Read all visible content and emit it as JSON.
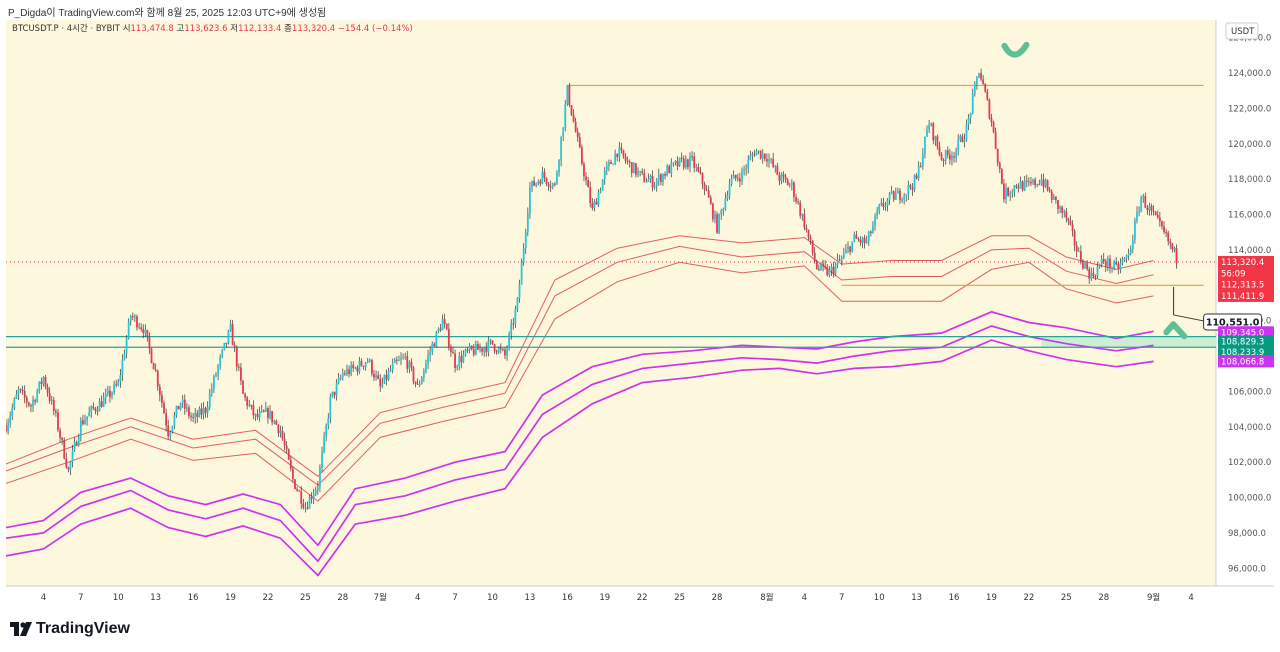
{
  "header": {
    "published": "P_Digda이 TradingView.com와 함께 8월 25, 2025 12:03 UTC+9에 생성됨",
    "symbol": "BTCUSDT.P · 4시간 · BYBIT",
    "open_label": "시",
    "open": "113,474.8",
    "high_label": "고",
    "high": "113,623.6",
    "low_label": "저",
    "low": "112,133.4",
    "close_label": "종",
    "close": "113,320.4",
    "change": "−154.4 (−0.14%)"
  },
  "brand": {
    "name": "TradingView"
  },
  "chart_data": {
    "type": "candlestick",
    "currency": "USDT",
    "y_range": [
      95000,
      127000
    ],
    "y_ticks": [
      96000,
      98000,
      100000,
      102000,
      104000,
      106000,
      108000,
      110000,
      112000,
      114000,
      116000,
      118000,
      120000,
      122000,
      124000,
      126000
    ],
    "y_tick_labels": [
      "96,000.0",
      "98,000.0",
      "100,000.0",
      "102,000.0",
      "104,000.0",
      "106,000.0",
      "108,000.0",
      "110,000.0",
      "112,000.0",
      "114,000.0",
      "116,000.0",
      "118,000.0",
      "120,000.0",
      "122,000.0",
      "124,000.0",
      "126,000.0"
    ],
    "x_labels": [
      "4",
      "7",
      "10",
      "13",
      "16",
      "19",
      "22",
      "25",
      "28",
      "7월",
      "4",
      "7",
      "10",
      "13",
      "16",
      "19",
      "22",
      "25",
      "28",
      "8월",
      "4",
      "7",
      "10",
      "13",
      "16",
      "19",
      "22",
      "25",
      "28",
      "9월",
      "4"
    ],
    "x_label_days": [
      4,
      7,
      10,
      13,
      16,
      19,
      22,
      25,
      28,
      31,
      34,
      37,
      40,
      43,
      46,
      49,
      52,
      55,
      58,
      62,
      65,
      68,
      71,
      74,
      77,
      80,
      83,
      86,
      89,
      93,
      96
    ],
    "day_range": [
      1,
      98
    ],
    "close_path": [
      [
        1,
        104100
      ],
      [
        2,
        106000
      ],
      [
        3,
        105200
      ],
      [
        4,
        106800
      ],
      [
        5,
        104500
      ],
      [
        6,
        101500
      ],
      [
        7,
        104200
      ],
      [
        8,
        105000
      ],
      [
        9,
        105600
      ],
      [
        10,
        106400
      ],
      [
        11,
        110300
      ],
      [
        12,
        109600
      ],
      [
        13,
        107100
      ],
      [
        14,
        103700
      ],
      [
        15,
        105400
      ],
      [
        16,
        104400
      ],
      [
        17,
        105000
      ],
      [
        18,
        107400
      ],
      [
        19,
        109500
      ],
      [
        20,
        105800
      ],
      [
        21,
        104500
      ],
      [
        22,
        104800
      ],
      [
        23,
        103800
      ],
      [
        24,
        101000
      ],
      [
        25,
        99500
      ],
      [
        26,
        100800
      ],
      [
        27,
        105500
      ],
      [
        28,
        107000
      ],
      [
        29,
        107300
      ],
      [
        30,
        107800
      ],
      [
        31,
        106200
      ],
      [
        32,
        107400
      ],
      [
        33,
        107900
      ],
      [
        34,
        106200
      ],
      [
        35,
        108300
      ],
      [
        36,
        110000
      ],
      [
        37,
        107600
      ],
      [
        38,
        108200
      ],
      [
        39,
        108400
      ],
      [
        40,
        108700
      ],
      [
        41,
        108000
      ],
      [
        42,
        111000
      ],
      [
        43,
        117500
      ],
      [
        44,
        118200
      ],
      [
        45,
        117600
      ],
      [
        46,
        123000
      ],
      [
        47,
        119500
      ],
      [
        48,
        116200
      ],
      [
        49,
        118300
      ],
      [
        50,
        119600
      ],
      [
        51,
        118800
      ],
      [
        52,
        118100
      ],
      [
        53,
        117800
      ],
      [
        54,
        118500
      ],
      [
        55,
        118900
      ],
      [
        56,
        119000
      ],
      [
        57,
        117600
      ],
      [
        58,
        115300
      ],
      [
        59,
        117800
      ],
      [
        60,
        118300
      ],
      [
        61,
        119600
      ],
      [
        62,
        119300
      ],
      [
        63,
        118100
      ],
      [
        64,
        117600
      ],
      [
        65,
        115500
      ],
      [
        66,
        113000
      ],
      [
        67,
        112700
      ],
      [
        68,
        113500
      ],
      [
        69,
        114600
      ],
      [
        70,
        114400
      ],
      [
        71,
        116300
      ],
      [
        72,
        117000
      ],
      [
        73,
        117200
      ],
      [
        74,
        118000
      ],
      [
        75,
        121200
      ],
      [
        76,
        119200
      ],
      [
        77,
        119500
      ],
      [
        78,
        120800
      ],
      [
        79,
        124200
      ],
      [
        80,
        121300
      ],
      [
        81,
        117100
      ],
      [
        82,
        117700
      ],
      [
        83,
        117600
      ],
      [
        84,
        118000
      ],
      [
        85,
        116800
      ],
      [
        86,
        115800
      ],
      [
        87,
        113700
      ],
      [
        88,
        112500
      ],
      [
        89,
        113400
      ],
      [
        90,
        112900
      ],
      [
        91,
        113700
      ],
      [
        92,
        117000
      ],
      [
        93,
        115900
      ],
      [
        94,
        114700
      ],
      [
        95,
        113320
      ]
    ],
    "series": [
      {
        "name": "",
        "color": "#e06060",
        "values": [
          [
            1,
            101900
          ],
          [
            6,
            103300
          ],
          [
            11,
            104500
          ],
          [
            16,
            103300
          ],
          [
            21,
            103800
          ],
          [
            26,
            101200
          ],
          [
            31,
            104800
          ],
          [
            36,
            105700
          ],
          [
            41,
            106500
          ],
          [
            45,
            112300
          ],
          [
            50,
            114100
          ],
          [
            55,
            114800
          ],
          [
            60,
            114400
          ],
          [
            65,
            114700
          ],
          [
            68,
            113200
          ],
          [
            72,
            113400
          ],
          [
            76,
            113400
          ],
          [
            80,
            114800
          ],
          [
            83,
            114800
          ],
          [
            86,
            113600
          ],
          [
            90,
            112900
          ],
          [
            93,
            113400
          ]
        ]
      },
      {
        "name": "",
        "color": "#e06060",
        "values": [
          [
            1,
            101500
          ],
          [
            6,
            102800
          ],
          [
            11,
            104000
          ],
          [
            16,
            102800
          ],
          [
            21,
            103300
          ],
          [
            26,
            100700
          ],
          [
            31,
            104200
          ],
          [
            36,
            105100
          ],
          [
            41,
            105900
          ],
          [
            45,
            111400
          ],
          [
            50,
            113300
          ],
          [
            55,
            114200
          ],
          [
            60,
            113600
          ],
          [
            65,
            113900
          ],
          [
            68,
            112300
          ],
          [
            72,
            112500
          ],
          [
            76,
            112500
          ],
          [
            80,
            114000
          ],
          [
            83,
            114100
          ],
          [
            86,
            112800
          ],
          [
            90,
            112100
          ],
          [
            93,
            112600
          ]
        ]
      },
      {
        "name": "",
        "color": "#e06060",
        "values": [
          [
            1,
            100800
          ],
          [
            6,
            102000
          ],
          [
            11,
            103300
          ],
          [
            16,
            102100
          ],
          [
            21,
            102500
          ],
          [
            26,
            99800
          ],
          [
            31,
            103400
          ],
          [
            36,
            104300
          ],
          [
            41,
            105100
          ],
          [
            45,
            110100
          ],
          [
            50,
            112200
          ],
          [
            55,
            113300
          ],
          [
            60,
            112700
          ],
          [
            65,
            113100
          ],
          [
            68,
            111100
          ],
          [
            72,
            111100
          ],
          [
            76,
            111100
          ],
          [
            80,
            112900
          ],
          [
            83,
            113300
          ],
          [
            86,
            111800
          ],
          [
            90,
            111000
          ],
          [
            93,
            111400
          ]
        ]
      },
      {
        "name": "",
        "color": "#cc33ee",
        "values": [
          [
            1,
            98300
          ],
          [
            4,
            98700
          ],
          [
            7,
            100300
          ],
          [
            11,
            101100
          ],
          [
            14,
            100100
          ],
          [
            17,
            99600
          ],
          [
            20,
            100200
          ],
          [
            23,
            99600
          ],
          [
            26,
            97300
          ],
          [
            29,
            100500
          ],
          [
            33,
            101100
          ],
          [
            37,
            102000
          ],
          [
            41,
            102600
          ],
          [
            44,
            105800
          ],
          [
            48,
            107400
          ],
          [
            52,
            108100
          ],
          [
            56,
            108300
          ],
          [
            60,
            108600
          ],
          [
            63,
            108500
          ],
          [
            66,
            108400
          ],
          [
            69,
            108800
          ],
          [
            72,
            109100
          ],
          [
            76,
            109300
          ],
          [
            80,
            110500
          ],
          [
            83,
            109900
          ],
          [
            86,
            109600
          ],
          [
            90,
            109000
          ],
          [
            93,
            109400
          ]
        ]
      },
      {
        "name": "",
        "color": "#cc33ee",
        "values": [
          [
            1,
            97700
          ],
          [
            4,
            98000
          ],
          [
            7,
            99500
          ],
          [
            11,
            100400
          ],
          [
            14,
            99300
          ],
          [
            17,
            98800
          ],
          [
            20,
            99400
          ],
          [
            23,
            98700
          ],
          [
            26,
            96400
          ],
          [
            29,
            99600
          ],
          [
            33,
            100100
          ],
          [
            37,
            101000
          ],
          [
            41,
            101600
          ],
          [
            44,
            104700
          ],
          [
            48,
            106400
          ],
          [
            52,
            107300
          ],
          [
            56,
            107600
          ],
          [
            60,
            107900
          ],
          [
            63,
            107800
          ],
          [
            66,
            107600
          ],
          [
            69,
            108000
          ],
          [
            72,
            108300
          ],
          [
            76,
            108500
          ],
          [
            80,
            109700
          ],
          [
            83,
            109100
          ],
          [
            86,
            108700
          ],
          [
            90,
            108300
          ],
          [
            93,
            108600
          ]
        ]
      },
      {
        "name": "",
        "color": "#cc33ee",
        "values": [
          [
            1,
            96700
          ],
          [
            4,
            97100
          ],
          [
            7,
            98500
          ],
          [
            11,
            99400
          ],
          [
            14,
            98300
          ],
          [
            17,
            97800
          ],
          [
            20,
            98400
          ],
          [
            23,
            97700
          ],
          [
            26,
            95600
          ],
          [
            29,
            98500
          ],
          [
            33,
            99000
          ],
          [
            37,
            99800
          ],
          [
            41,
            100500
          ],
          [
            44,
            103400
          ],
          [
            48,
            105300
          ],
          [
            52,
            106500
          ],
          [
            56,
            106800
          ],
          [
            60,
            107200
          ],
          [
            63,
            107300
          ],
          [
            66,
            107000
          ],
          [
            69,
            107300
          ],
          [
            72,
            107400
          ],
          [
            76,
            107700
          ],
          [
            80,
            108900
          ],
          [
            83,
            108300
          ],
          [
            86,
            107800
          ],
          [
            90,
            107400
          ],
          [
            93,
            107700
          ]
        ]
      }
    ],
    "horizontal_levels": [
      {
        "price": 123300,
        "from_day": 46,
        "to_day": 97,
        "color": "#f0a020"
      },
      {
        "price": 112000,
        "from_day": 68,
        "to_day": 97,
        "color": "#f0a020"
      },
      {
        "price": 109100,
        "from_day": 1,
        "to_day": 98,
        "color": "#26a69a"
      },
      {
        "price": 108500,
        "from_day": 1,
        "to_day": 98,
        "color": "#26a69a"
      }
    ],
    "current_price_line": 113320,
    "support_zone": {
      "from_day": 84,
      "to_day": 98,
      "low": 108500,
      "high": 109100,
      "color": "#c8ecd2"
    },
    "callout": {
      "day": 94.6,
      "price": 110551,
      "text": "110,551.0"
    },
    "price_tags": [
      {
        "text": "113,320.4",
        "price": 113320,
        "color": "#f23645"
      },
      {
        "text": "56:09",
        "price": 112680,
        "color": "#f23645"
      },
      {
        "text": "112,313.5",
        "price": 112040,
        "color": "#f23645"
      },
      {
        "text": "111,411.9",
        "price": 111400,
        "color": "#f23645"
      },
      {
        "text": "109,345.0",
        "price": 109345,
        "color": "#cc33ee"
      },
      {
        "text": "108,829.3",
        "price": 108829,
        "color": "#089981"
      },
      {
        "text": "108,233.9",
        "price": 108234,
        "color": "#089981"
      },
      {
        "text": "108,066.8",
        "price": 107700,
        "color": "#cc33ee"
      }
    ],
    "marks": [
      {
        "day": 82,
        "price": 125200,
        "shape": "check",
        "color": "#5cbf95"
      },
      {
        "day": 94.5,
        "price": 109800,
        "shape": "caret-up",
        "color": "#5cbf95"
      }
    ],
    "colors": {
      "up": "#26c6da",
      "down": "#e53950",
      "wick": "#333333",
      "background": "#fdf7dd"
    }
  }
}
